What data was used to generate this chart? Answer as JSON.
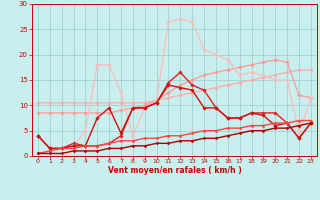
{
  "xlabel": "Vent moyen/en rafales ( km/h )",
  "xlim": [
    -0.5,
    23.5
  ],
  "ylim": [
    0,
    30
  ],
  "xticks": [
    0,
    1,
    2,
    3,
    4,
    5,
    6,
    7,
    8,
    9,
    10,
    11,
    12,
    13,
    14,
    15,
    16,
    17,
    18,
    19,
    20,
    21,
    22,
    23
  ],
  "yticks": [
    0,
    5,
    10,
    15,
    20,
    25,
    30
  ],
  "bg_color": "#c8eeee",
  "grid_color": "#99cccc",
  "lines": [
    {
      "y": [
        10.5,
        10.5,
        10.5,
        10.5,
        10.5,
        10.5,
        10.5,
        10.5,
        10.5,
        10.5,
        11.0,
        11.5,
        12.0,
        12.5,
        13.0,
        13.5,
        14.0,
        14.5,
        15.0,
        15.5,
        16.0,
        16.5,
        17.0,
        17.0
      ],
      "color": "#ffaaaa",
      "lw": 0.9,
      "marker": "D",
      "ms": 1.8
    },
    {
      "y": [
        8.5,
        8.5,
        8.5,
        8.5,
        8.5,
        8.5,
        8.5,
        9.0,
        9.5,
        10.0,
        11.0,
        12.5,
        14.0,
        15.0,
        16.0,
        16.5,
        17.0,
        17.5,
        18.0,
        18.5,
        19.0,
        18.5,
        12.0,
        11.5
      ],
      "color": "#ff9999",
      "lw": 0.9,
      "marker": "D",
      "ms": 1.8
    },
    {
      "y": [
        4.0,
        1.5,
        1.5,
        2.0,
        5.0,
        18.0,
        18.0,
        12.5,
        4.0,
        9.5,
        11.0,
        26.5,
        27.0,
        26.5,
        21.0,
        20.0,
        19.0,
        16.0,
        16.5,
        16.0,
        15.0,
        15.0,
        4.5,
        11.5
      ],
      "color": "#ffbbbb",
      "lw": 0.9,
      "marker": "D",
      "ms": 1.8
    },
    {
      "y": [
        4.0,
        1.5,
        1.5,
        2.5,
        2.0,
        2.0,
        2.5,
        4.0,
        9.5,
        9.5,
        10.5,
        14.5,
        16.5,
        14.0,
        13.0,
        9.5,
        7.5,
        7.5,
        8.5,
        8.5,
        8.5,
        6.5,
        3.5,
        6.5
      ],
      "color": "#dd2222",
      "lw": 1.0,
      "marker": "D",
      "ms": 1.8
    },
    {
      "y": [
        4.0,
        1.5,
        1.5,
        2.0,
        2.0,
        7.5,
        9.5,
        4.5,
        9.5,
        9.5,
        10.5,
        14.0,
        13.5,
        13.0,
        9.5,
        9.5,
        7.5,
        7.5,
        8.5,
        8.0,
        6.0,
        6.5,
        3.5,
        6.5
      ],
      "color": "#cc1111",
      "lw": 1.0,
      "marker": "D",
      "ms": 1.8
    },
    {
      "y": [
        0.5,
        1.0,
        1.5,
        1.5,
        2.0,
        2.0,
        2.5,
        3.0,
        3.0,
        3.5,
        3.5,
        4.0,
        4.0,
        4.5,
        5.0,
        5.0,
        5.5,
        5.5,
        6.0,
        6.0,
        6.5,
        6.5,
        7.0,
        7.0
      ],
      "color": "#ff4444",
      "lw": 1.0,
      "marker": "D",
      "ms": 1.5
    },
    {
      "y": [
        0.5,
        0.5,
        0.5,
        1.0,
        1.0,
        1.0,
        1.5,
        1.5,
        2.0,
        2.0,
        2.5,
        2.5,
        3.0,
        3.0,
        3.5,
        3.5,
        4.0,
        4.5,
        5.0,
        5.0,
        5.5,
        5.5,
        6.0,
        6.5
      ],
      "color": "#aa0000",
      "lw": 1.0,
      "marker": "D",
      "ms": 1.5
    }
  ],
  "wind_icons": [
    "↘",
    "↘",
    "↘",
    "↘",
    "↘",
    "↘",
    "↘",
    "↘",
    "↘",
    "↘",
    "↘",
    "↘",
    "↘",
    "↘",
    "↘",
    "↘",
    "↓",
    "↗",
    "↗",
    "↗",
    "↗",
    "↗",
    "↗",
    "↘"
  ]
}
